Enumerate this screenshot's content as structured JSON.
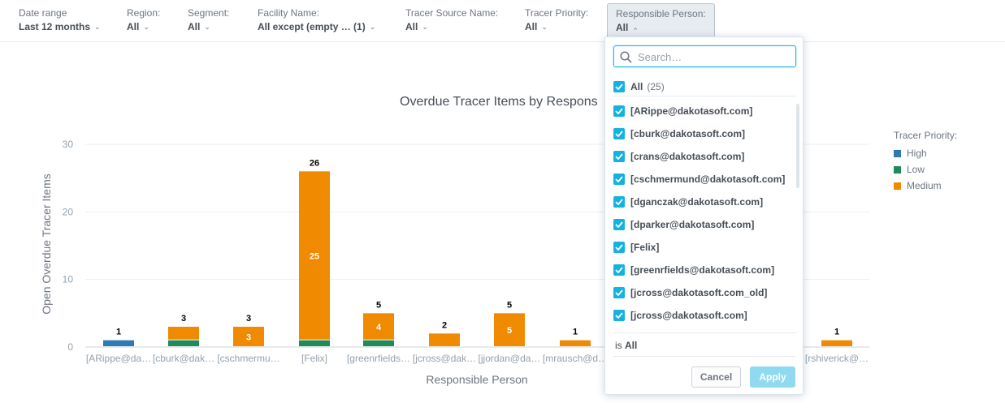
{
  "filters": [
    {
      "label": "Date range",
      "value": "Last 12 months"
    },
    {
      "label": "Region:",
      "value": "All"
    },
    {
      "label": "Segment:",
      "value": "All"
    },
    {
      "label": "Facility Name:",
      "value": "All except (empty … (1)"
    },
    {
      "label": "Tracer Source Name:",
      "value": "All"
    },
    {
      "label": "Tracer Priority:",
      "value": "All"
    },
    {
      "label": "Responsible Person:",
      "value": "All"
    }
  ],
  "dropdown": {
    "search_placeholder": "Search…",
    "all_label": "All",
    "all_count": "(25)",
    "items": [
      "[ARippe@dakotasoft.com]",
      "[cburk@dakotasoft.com]",
      "[crans@dakotasoft.com]",
      "[cschmermund@dakotasoft.com]",
      "[dganczak@dakotasoft.com]",
      "[dparker@dakotasoft.com]",
      "[Felix]",
      "[greenrfields@dakotasoft.com]",
      "[jcross@dakotasoft.com_old]",
      "[jcross@dakotasoft.com]"
    ],
    "summary_prefix": "is",
    "summary_value": "All",
    "cancel_label": "Cancel",
    "apply_label": "Apply"
  },
  "colors": {
    "high": "#2e7ab3",
    "low": "#1f8a5a",
    "medium": "#f08a00",
    "accent": "#14b2e2"
  },
  "chart_data": {
    "type": "bar",
    "stacked": true,
    "title": "Overdue Tracer Items by Respons",
    "xlabel": "Responsible Person",
    "ylabel": "Open Overdue Tracer Items",
    "ylim": [
      0,
      30
    ],
    "yticks": [
      0,
      10,
      20,
      30
    ],
    "grid": true,
    "legend_title": "Tracer Priority:",
    "legend_position": "right",
    "categories": [
      "[ARippe@da…",
      "[cburk@dak…",
      "[cschmermu…",
      "[Felix]",
      "[greenrfields…",
      "[jcross@dak…",
      "[jjordan@da…",
      "[mrausch@d…",
      "[rshiverick@…"
    ],
    "series": [
      {
        "name": "High",
        "values": [
          1,
          0,
          0,
          0,
          0,
          0,
          0,
          0,
          0
        ]
      },
      {
        "name": "Low",
        "values": [
          0,
          1,
          0,
          1,
          1,
          0,
          0,
          0,
          0
        ]
      },
      {
        "name": "Medium",
        "values": [
          0,
          2,
          3,
          25,
          4,
          2,
          5,
          1,
          1
        ]
      }
    ],
    "totals": [
      "1",
      "3",
      "3",
      "26",
      "5",
      "2",
      "5",
      "1",
      "1"
    ],
    "segment_labels": [
      "",
      "",
      "3",
      "25",
      "4",
      "",
      "5",
      "",
      ""
    ]
  }
}
